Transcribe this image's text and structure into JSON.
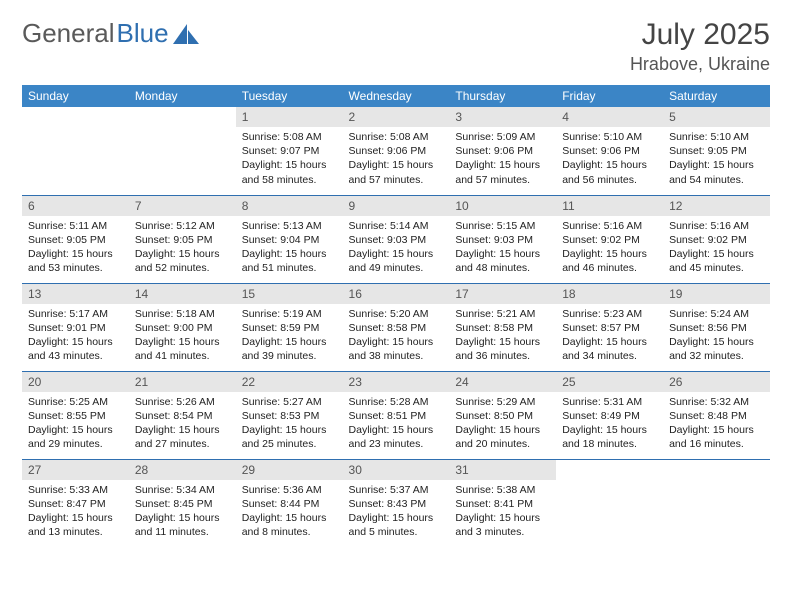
{
  "logo": {
    "text1": "General",
    "text2": "Blue"
  },
  "title": {
    "month": "July 2025",
    "location": "Hrabove, Ukraine"
  },
  "colors": {
    "header_bg": "#3b85c6",
    "divider": "#2f6fb0",
    "daynum_bg": "#e6e6e6"
  },
  "weekdays": [
    "Sunday",
    "Monday",
    "Tuesday",
    "Wednesday",
    "Thursday",
    "Friday",
    "Saturday"
  ],
  "weeks": [
    [
      null,
      null,
      {
        "n": "1",
        "sr": "5:08 AM",
        "ss": "9:07 PM",
        "dl": "15 hours and 58 minutes."
      },
      {
        "n": "2",
        "sr": "5:08 AM",
        "ss": "9:06 PM",
        "dl": "15 hours and 57 minutes."
      },
      {
        "n": "3",
        "sr": "5:09 AM",
        "ss": "9:06 PM",
        "dl": "15 hours and 57 minutes."
      },
      {
        "n": "4",
        "sr": "5:10 AM",
        "ss": "9:06 PM",
        "dl": "15 hours and 56 minutes."
      },
      {
        "n": "5",
        "sr": "5:10 AM",
        "ss": "9:05 PM",
        "dl": "15 hours and 54 minutes."
      }
    ],
    [
      {
        "n": "6",
        "sr": "5:11 AM",
        "ss": "9:05 PM",
        "dl": "15 hours and 53 minutes."
      },
      {
        "n": "7",
        "sr": "5:12 AM",
        "ss": "9:05 PM",
        "dl": "15 hours and 52 minutes."
      },
      {
        "n": "8",
        "sr": "5:13 AM",
        "ss": "9:04 PM",
        "dl": "15 hours and 51 minutes."
      },
      {
        "n": "9",
        "sr": "5:14 AM",
        "ss": "9:03 PM",
        "dl": "15 hours and 49 minutes."
      },
      {
        "n": "10",
        "sr": "5:15 AM",
        "ss": "9:03 PM",
        "dl": "15 hours and 48 minutes."
      },
      {
        "n": "11",
        "sr": "5:16 AM",
        "ss": "9:02 PM",
        "dl": "15 hours and 46 minutes."
      },
      {
        "n": "12",
        "sr": "5:16 AM",
        "ss": "9:02 PM",
        "dl": "15 hours and 45 minutes."
      }
    ],
    [
      {
        "n": "13",
        "sr": "5:17 AM",
        "ss": "9:01 PM",
        "dl": "15 hours and 43 minutes."
      },
      {
        "n": "14",
        "sr": "5:18 AM",
        "ss": "9:00 PM",
        "dl": "15 hours and 41 minutes."
      },
      {
        "n": "15",
        "sr": "5:19 AM",
        "ss": "8:59 PM",
        "dl": "15 hours and 39 minutes."
      },
      {
        "n": "16",
        "sr": "5:20 AM",
        "ss": "8:58 PM",
        "dl": "15 hours and 38 minutes."
      },
      {
        "n": "17",
        "sr": "5:21 AM",
        "ss": "8:58 PM",
        "dl": "15 hours and 36 minutes."
      },
      {
        "n": "18",
        "sr": "5:23 AM",
        "ss": "8:57 PM",
        "dl": "15 hours and 34 minutes."
      },
      {
        "n": "19",
        "sr": "5:24 AM",
        "ss": "8:56 PM",
        "dl": "15 hours and 32 minutes."
      }
    ],
    [
      {
        "n": "20",
        "sr": "5:25 AM",
        "ss": "8:55 PM",
        "dl": "15 hours and 29 minutes."
      },
      {
        "n": "21",
        "sr": "5:26 AM",
        "ss": "8:54 PM",
        "dl": "15 hours and 27 minutes."
      },
      {
        "n": "22",
        "sr": "5:27 AM",
        "ss": "8:53 PM",
        "dl": "15 hours and 25 minutes."
      },
      {
        "n": "23",
        "sr": "5:28 AM",
        "ss": "8:51 PM",
        "dl": "15 hours and 23 minutes."
      },
      {
        "n": "24",
        "sr": "5:29 AM",
        "ss": "8:50 PM",
        "dl": "15 hours and 20 minutes."
      },
      {
        "n": "25",
        "sr": "5:31 AM",
        "ss": "8:49 PM",
        "dl": "15 hours and 18 minutes."
      },
      {
        "n": "26",
        "sr": "5:32 AM",
        "ss": "8:48 PM",
        "dl": "15 hours and 16 minutes."
      }
    ],
    [
      {
        "n": "27",
        "sr": "5:33 AM",
        "ss": "8:47 PM",
        "dl": "15 hours and 13 minutes."
      },
      {
        "n": "28",
        "sr": "5:34 AM",
        "ss": "8:45 PM",
        "dl": "15 hours and 11 minutes."
      },
      {
        "n": "29",
        "sr": "5:36 AM",
        "ss": "8:44 PM",
        "dl": "15 hours and 8 minutes."
      },
      {
        "n": "30",
        "sr": "5:37 AM",
        "ss": "8:43 PM",
        "dl": "15 hours and 5 minutes."
      },
      {
        "n": "31",
        "sr": "5:38 AM",
        "ss": "8:41 PM",
        "dl": "15 hours and 3 minutes."
      },
      null,
      null
    ]
  ],
  "labels": {
    "sunrise": "Sunrise:",
    "sunset": "Sunset:",
    "daylight": "Daylight:"
  }
}
